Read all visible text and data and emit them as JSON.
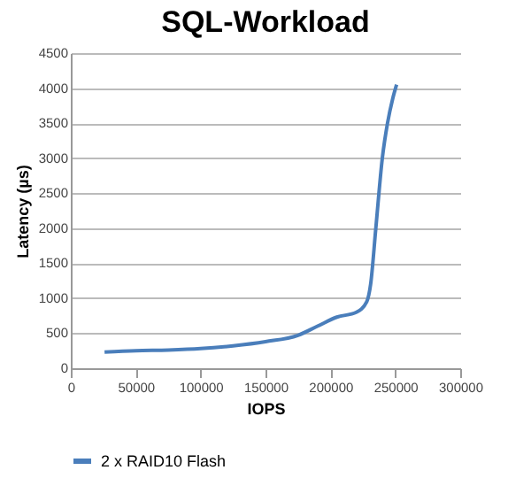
{
  "chart_data": {
    "type": "line",
    "title": "SQL-Workload",
    "xlabel": "IOPS",
    "ylabel": "Latency (µs)",
    "x": [
      26000,
      50000,
      75000,
      100000,
      125000,
      150000,
      175000,
      190000,
      205000,
      220000,
      228000,
      231000,
      235000,
      240000,
      244000,
      248000,
      251000
    ],
    "series": [
      {
        "name": "2 x RAID10 Flash",
        "color": "#4a7ebb",
        "values": [
          230,
          250,
          260,
          280,
          320,
          380,
          470,
          600,
          730,
          800,
          950,
          1200,
          2000,
          3000,
          3500,
          3850,
          4050
        ]
      }
    ],
    "xlim": [
      0,
      300000
    ],
    "xticks": [
      0,
      50000,
      100000,
      150000,
      200000,
      250000,
      300000
    ],
    "ylim": [
      0,
      4500
    ],
    "yticks": [
      0,
      500,
      1000,
      1500,
      2000,
      2500,
      3000,
      3500,
      4000,
      4500
    ],
    "grid": "y",
    "legend": "bottom",
    "marker": "none",
    "line_style": "solid"
  }
}
